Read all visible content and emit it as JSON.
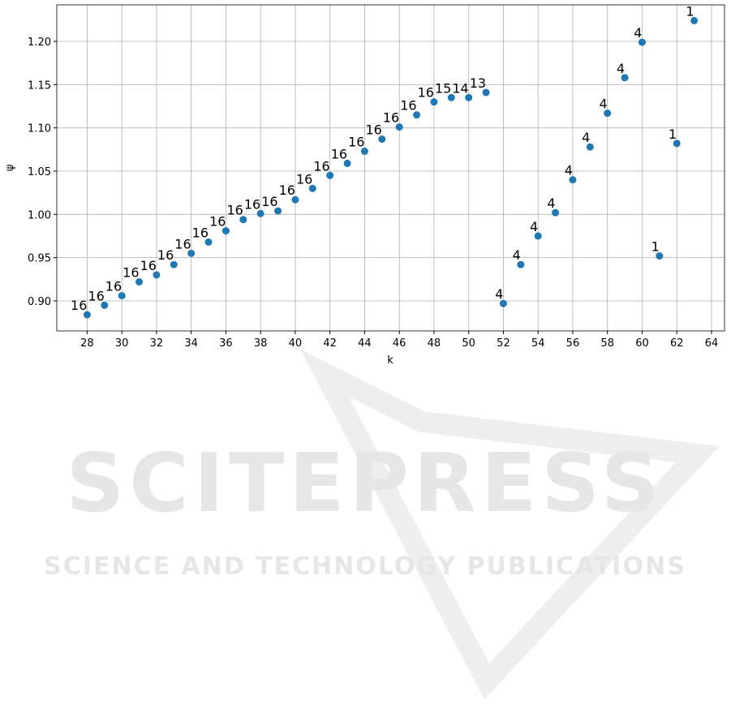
{
  "chart_data": {
    "type": "scatter",
    "color": "#1f77b4",
    "grid": true,
    "x_label": "k",
    "y_label": "ψ",
    "x": [
      28,
      29,
      30,
      31,
      32,
      33,
      34,
      35,
      36,
      37,
      38,
      39,
      40,
      41,
      42,
      43,
      44,
      45,
      46,
      47,
      48,
      49,
      50,
      51,
      52,
      53,
      54,
      55,
      56,
      57,
      58,
      59,
      60,
      61,
      62,
      63
    ],
    "values": [
      0.884,
      0.895,
      0.906,
      0.922,
      0.93,
      0.942,
      0.955,
      0.968,
      0.981,
      0.994,
      1.001,
      1.004,
      1.017,
      1.03,
      1.045,
      1.059,
      1.073,
      1.087,
      1.101,
      1.115,
      1.13,
      1.135,
      1.135,
      1.141,
      0.897,
      0.942,
      0.975,
      1.002,
      1.04,
      1.078,
      1.117,
      1.158,
      1.199,
      0.952,
      1.082,
      1.224
    ],
    "annotations": [
      "16",
      "16",
      "16",
      "16",
      "16",
      "16",
      "16",
      "16",
      "16",
      "16",
      "16",
      "16",
      "16",
      "16",
      "16",
      "16",
      "16",
      "16",
      "16",
      "16",
      "16",
      "15",
      "14",
      "13",
      "4",
      "4",
      "4",
      "4",
      "4",
      "4",
      "4",
      "4",
      "4",
      "1",
      "1",
      "1"
    ],
    "xlim": [
      26.25,
      64.75
    ],
    "xticks": [
      28,
      30,
      32,
      34,
      36,
      38,
      40,
      42,
      44,
      46,
      48,
      50,
      52,
      54,
      56,
      58,
      60,
      62,
      64
    ],
    "ylim": [
      0.8653,
      1.2422
    ],
    "yticks": [
      {
        "value": 0.9,
        "label": "0.90"
      },
      0.95,
      {
        "value": 1.0,
        "label": "1.00"
      },
      1.05,
      {
        "value": 1.1,
        "label": "1.10"
      },
      1.15,
      {
        "value": 1.2,
        "label": "1.20"
      }
    ]
  },
  "watermark": {
    "title": "SCITEPRESS",
    "subtitle": "SCIENCE AND TECHNOLOGY PUBLICATIONS"
  }
}
